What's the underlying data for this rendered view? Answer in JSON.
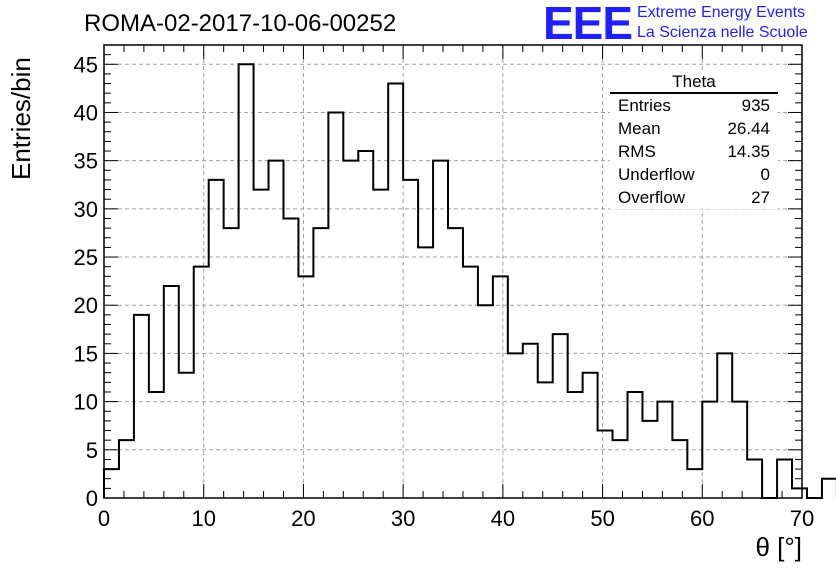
{
  "header": {
    "title": "ROMA-02-2017-10-06-00252"
  },
  "logo": {
    "mark": "EEE",
    "line1": "Extreme Energy Events",
    "line2": "La Scienza nelle Scuole",
    "color": "#1f1fff"
  },
  "stats_box": {
    "title": "Theta",
    "rows": [
      {
        "label": "Entries",
        "value": "935"
      },
      {
        "label": "Mean",
        "value": "26.44"
      },
      {
        "label": "RMS",
        "value": "14.35"
      },
      {
        "label": "Underflow",
        "value": "0"
      },
      {
        "label": "Overflow",
        "value": "27"
      }
    ]
  },
  "chart_data": {
    "type": "bar",
    "style": "step-histogram",
    "xlabel": "θ [°]",
    "ylabel": "Entries/bin",
    "xlim": [
      0,
      70
    ],
    "ylim": [
      0,
      47
    ],
    "bin_width": 1.5,
    "bin_edges_start": 0,
    "values": [
      3,
      6,
      19,
      11,
      22,
      13,
      24,
      33,
      28,
      45,
      32,
      35,
      29,
      23,
      28,
      40,
      35,
      36,
      32,
      43,
      33,
      26,
      35,
      28,
      24,
      20,
      23,
      15,
      16,
      12,
      17,
      11,
      13,
      7,
      6,
      11,
      8,
      10,
      6,
      3,
      10,
      15,
      10,
      4,
      0,
      4,
      1,
      0,
      2
    ],
    "xticks": [
      0,
      10,
      20,
      30,
      40,
      50,
      60,
      70
    ],
    "yticks": [
      0,
      5,
      10,
      15,
      20,
      25,
      30,
      35,
      40,
      45
    ],
    "grid": true,
    "line_color": "#000000",
    "grid_color": "#a0a0a0"
  }
}
